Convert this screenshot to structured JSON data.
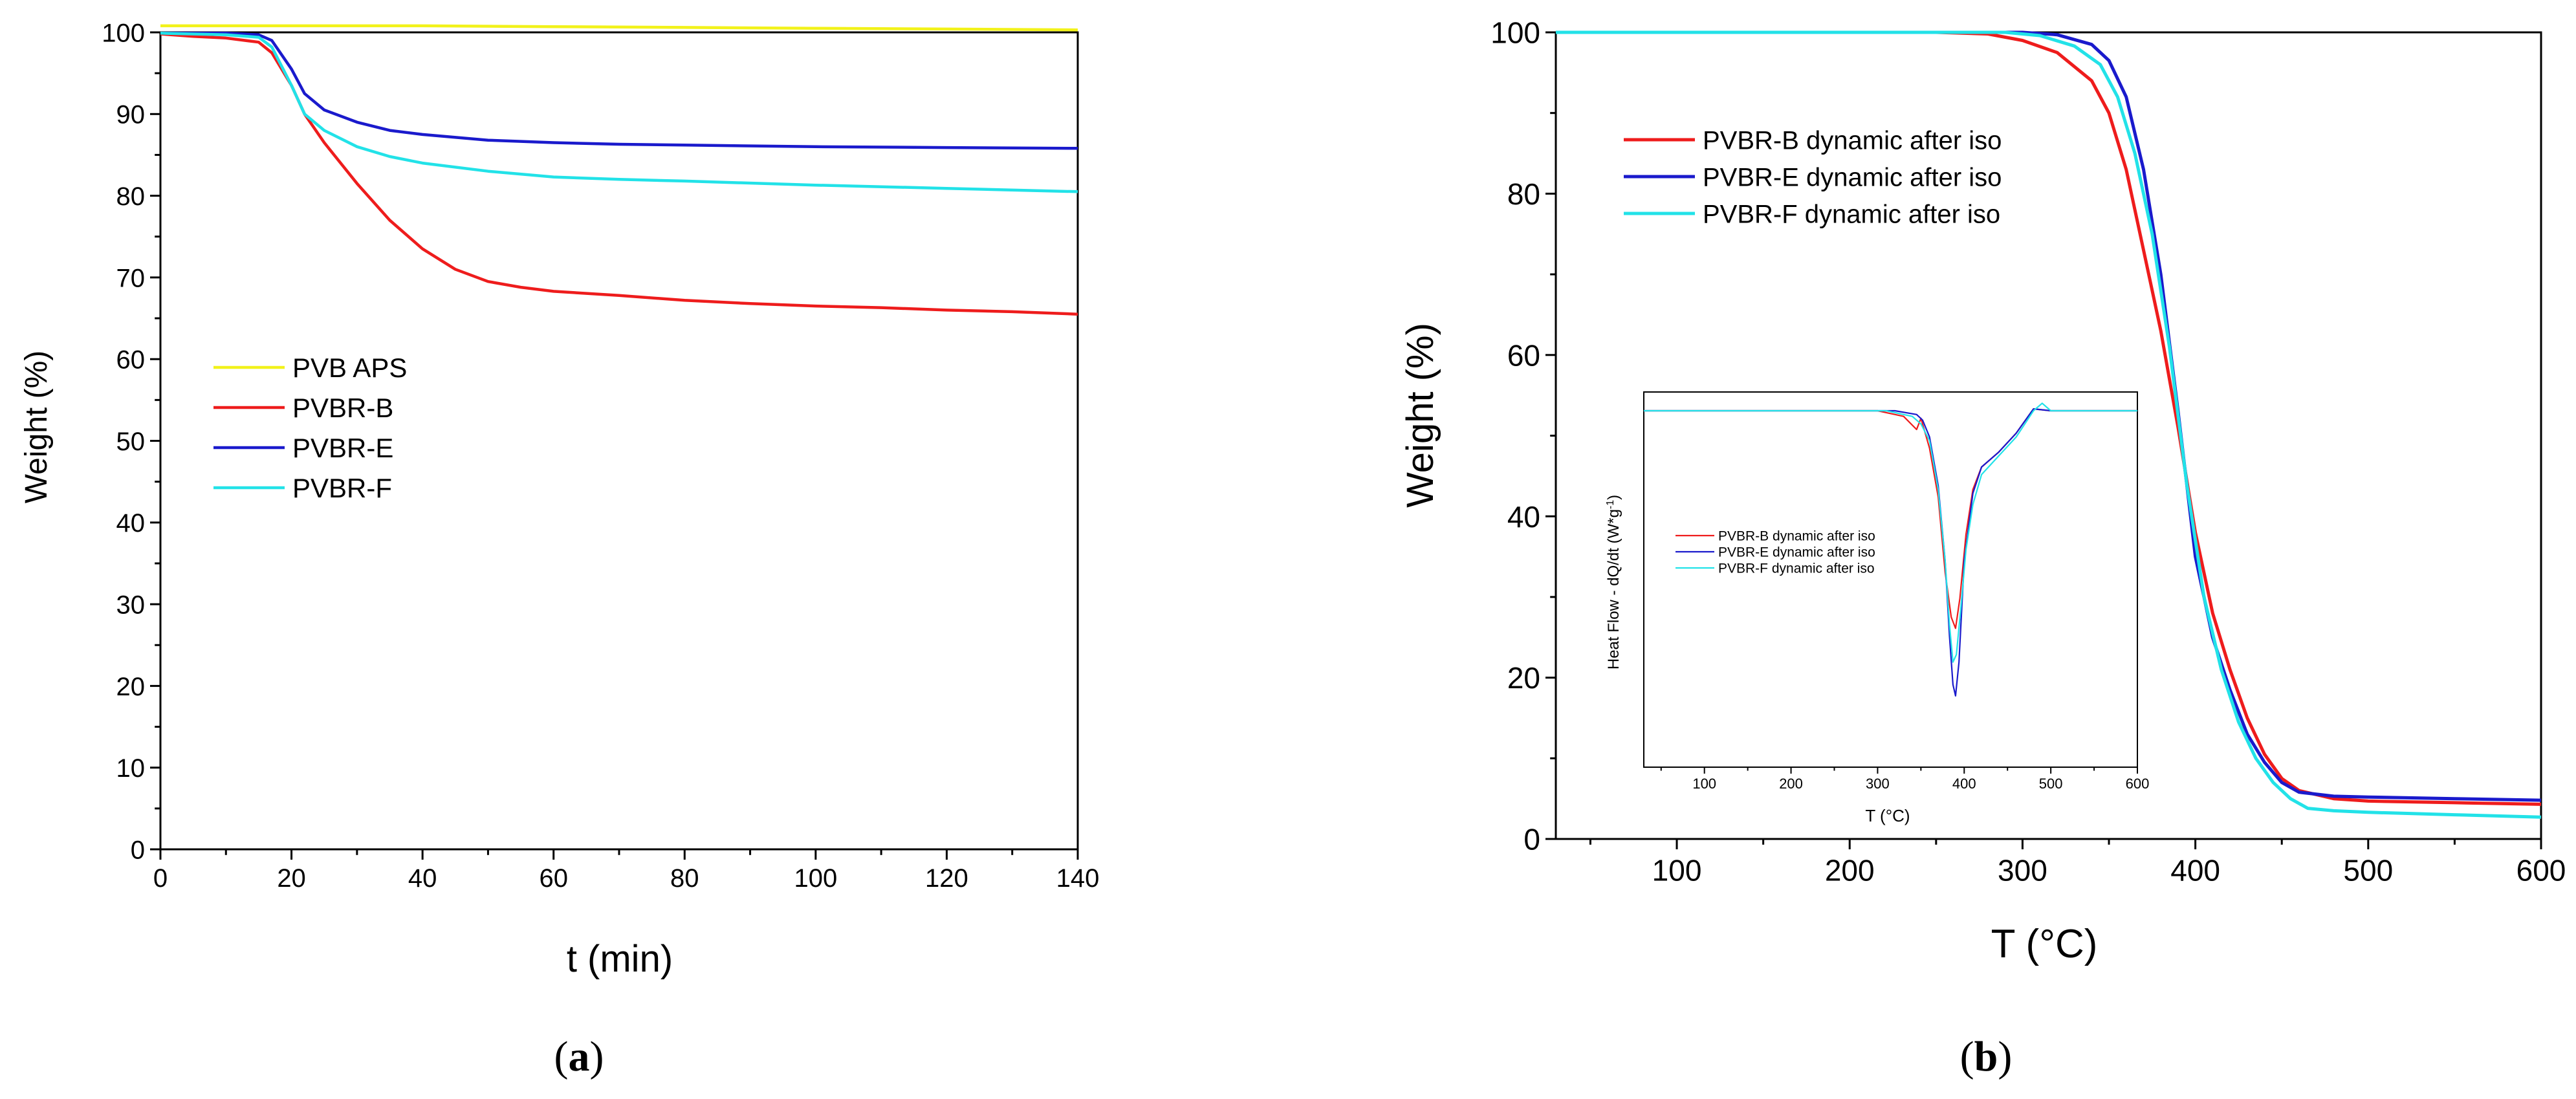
{
  "chart_data": [
    {
      "type": "line",
      "panel_label": "a",
      "xlabel": "t (min)",
      "ylabel": "Weight (%)",
      "xlim": [
        0,
        140
      ],
      "ylim": [
        0,
        100
      ],
      "xticks": [
        0,
        20,
        40,
        60,
        80,
        100,
        120,
        140
      ],
      "yticks": [
        0,
        10,
        20,
        30,
        40,
        50,
        60,
        70,
        80,
        90,
        100
      ],
      "legend_position": "middle-left",
      "series": [
        {
          "name": "PVB APS",
          "color": "#f2f21a",
          "x": [
            0,
            20,
            40,
            60,
            80,
            100,
            120,
            140
          ],
          "y": [
            100.8,
            100.8,
            100.8,
            100.7,
            100.6,
            100.5,
            100.4,
            100.3
          ]
        },
        {
          "name": "PVBR-B",
          "color": "#ee1c1c",
          "x": [
            0,
            5,
            10,
            15,
            17,
            20,
            22,
            25,
            30,
            35,
            40,
            45,
            50,
            55,
            60,
            70,
            80,
            90,
            100,
            110,
            120,
            130,
            140
          ],
          "y": [
            99.8,
            99.5,
            99.3,
            98.8,
            97.5,
            93.5,
            90.0,
            86.5,
            81.5,
            77.0,
            73.5,
            71.0,
            69.5,
            68.8,
            68.3,
            67.8,
            67.2,
            66.8,
            66.5,
            66.3,
            66.0,
            65.8,
            65.5
          ]
        },
        {
          "name": "PVBR-E",
          "color": "#1a1acc",
          "x": [
            0,
            10,
            15,
            17,
            20,
            22,
            25,
            30,
            35,
            40,
            50,
            60,
            70,
            80,
            100,
            120,
            140
          ],
          "y": [
            99.9,
            99.9,
            99.7,
            99.0,
            95.5,
            92.5,
            90.5,
            89.0,
            88.0,
            87.5,
            86.8,
            86.5,
            86.3,
            86.2,
            86.0,
            85.9,
            85.8
          ]
        },
        {
          "name": "PVBR-F",
          "color": "#22e2e8",
          "x": [
            0,
            10,
            15,
            17,
            20,
            22,
            25,
            30,
            35,
            40,
            50,
            60,
            70,
            80,
            100,
            120,
            140
          ],
          "y": [
            99.9,
            99.7,
            99.4,
            98.2,
            93.5,
            90.0,
            88.0,
            86.0,
            84.8,
            84.0,
            83.0,
            82.3,
            82.0,
            81.8,
            81.3,
            80.9,
            80.5
          ]
        }
      ]
    },
    {
      "type": "line",
      "panel_label": "b",
      "xlabel": "T (°C)",
      "ylabel": "Weight (%)",
      "xlim": [
        30,
        600
      ],
      "ylim": [
        0,
        100
      ],
      "xticks": [
        100,
        200,
        300,
        400,
        500,
        600
      ],
      "yticks": [
        0,
        20,
        40,
        60,
        80,
        100
      ],
      "legend_position": "top-left",
      "series": [
        {
          "name": "PVBR-B dynamic after iso",
          "color": "#ee1c1c",
          "x": [
            30,
            250,
            280,
            300,
            320,
            340,
            350,
            360,
            370,
            380,
            390,
            400,
            410,
            420,
            430,
            440,
            450,
            460,
            480,
            500,
            550,
            600
          ],
          "y": [
            100,
            100,
            99.8,
            99.0,
            97.5,
            94.0,
            90.0,
            83.0,
            73.0,
            63.0,
            51.0,
            38.0,
            28.0,
            21.0,
            15.0,
            10.5,
            7.5,
            6.0,
            5.0,
            4.7,
            4.5,
            4.3
          ]
        },
        {
          "name": "PVBR-E dynamic after iso",
          "color": "#1a1acc",
          "x": [
            30,
            300,
            320,
            340,
            350,
            360,
            370,
            380,
            390,
            400,
            410,
            420,
            430,
            440,
            450,
            460,
            480,
            500,
            550,
            600
          ],
          "y": [
            100,
            100,
            99.7,
            98.5,
            96.5,
            92.0,
            83.0,
            70.0,
            53.0,
            35.0,
            25.0,
            18.5,
            13.0,
            9.5,
            7.0,
            5.8,
            5.3,
            5.2,
            5.0,
            4.8
          ]
        },
        {
          "name": "PVBR-F dynamic after iso",
          "color": "#22e2e8",
          "x": [
            30,
            290,
            310,
            330,
            345,
            355,
            365,
            375,
            385,
            395,
            405,
            415,
            425,
            435,
            445,
            455,
            465,
            480,
            500,
            550,
            600
          ],
          "y": [
            100,
            100,
            99.6,
            98.3,
            96.0,
            92.0,
            85.0,
            75.0,
            61.0,
            44.0,
            30.0,
            21.0,
            14.5,
            10.0,
            7.0,
            5.0,
            3.8,
            3.5,
            3.3,
            3.0,
            2.7
          ]
        }
      ],
      "inset": {
        "type": "line",
        "xlabel": "T (°C)",
        "ylabel": "Heat Flow - dQ/dt (W*g",
        "ylabel_sup": "-1",
        "ylabel_end": ")",
        "xlim": [
          30,
          600
        ],
        "ylim": [
          0,
          100
        ],
        "xticks": [
          100,
          200,
          300,
          400,
          500,
          600
        ],
        "yticks": [],
        "legend_position": "middle-left",
        "series": [
          {
            "name": "PVBR-B dynamic after iso",
            "color": "#ee1c1c",
            "x": [
              30,
              300,
              330,
              345,
              350,
              360,
              370,
              378,
              385,
              390,
              395,
              402,
              410,
              420,
              440,
              460,
              480,
              500,
              600
            ],
            "y": [
              95.0,
              95.0,
              93.5,
              90.0,
              93.0,
              85.0,
              72.0,
              52.0,
              40.0,
              37.0,
              45.0,
              62.0,
              74.0,
              80.0,
              84.0,
              89.0,
              95.5,
              95.0,
              95.0
            ]
          },
          {
            "name": "PVBR-E dynamic after iso",
            "color": "#1a1acc",
            "x": [
              30,
              320,
              345,
              352,
              360,
              370,
              378,
              383,
              387,
              390,
              394,
              400,
              410,
              420,
              440,
              460,
              480,
              500,
              600
            ],
            "y": [
              95.0,
              95.0,
              94.0,
              92.5,
              88.0,
              75.0,
              55.0,
              35.0,
              22.0,
              19.0,
              28.0,
              55.0,
              73.0,
              80.0,
              84.0,
              89.0,
              95.5,
              95.0,
              95.0
            ]
          },
          {
            "name": "PVBR-F dynamic after iso",
            "color": "#22e2e8",
            "x": [
              30,
              310,
              340,
              350,
              360,
              370,
              378,
              383,
              387,
              391,
              396,
              402,
              410,
              420,
              440,
              460,
              480,
              490,
              500,
              600
            ],
            "y": [
              95.0,
              95.0,
              93.5,
              91.5,
              87.0,
              74.0,
              55.0,
              38.0,
              28.0,
              30.0,
              42.0,
              58.0,
              70.0,
              78.0,
              83.0,
              88.0,
              95.0,
              97.0,
              95.0,
              95.0
            ]
          }
        ]
      }
    }
  ]
}
